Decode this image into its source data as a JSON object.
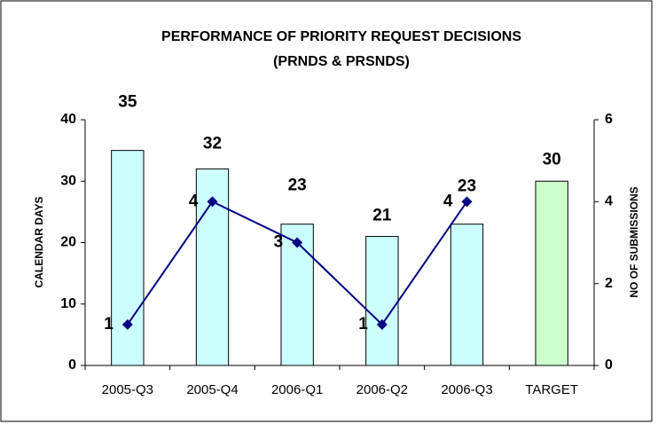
{
  "chart_data": {
    "type": "bar",
    "title": [
      "PERFORMANCE OF PRIORITY REQUEST DECISIONS",
      "(PRNDS & PRSNDS)"
    ],
    "y_label": "CALENDAR DAYS",
    "y2_label": "NO OF SUBMISSIONS",
    "categories": [
      "2005-Q3",
      "2005-Q4",
      "2006-Q1",
      "2006-Q2",
      "2006-Q3",
      "TARGET"
    ],
    "series": [
      {
        "type": "bar",
        "values": [
          35,
          32,
          23,
          21,
          23,
          30
        ],
        "colors": [
          "#ccffff",
          "#ccffff",
          "#ccffff",
          "#ccffff",
          "#ccffff",
          "#ccffcc"
        ]
      },
      {
        "type": "line",
        "axis": "y2",
        "values": [
          1,
          4,
          3,
          1,
          4,
          null
        ],
        "color": "#000080"
      }
    ],
    "ylim": [
      0,
      40
    ],
    "yticks": [
      0,
      10,
      20,
      30,
      40
    ],
    "y2lim": [
      0,
      6
    ],
    "y2ticks": [
      0,
      2,
      4,
      6
    ]
  }
}
